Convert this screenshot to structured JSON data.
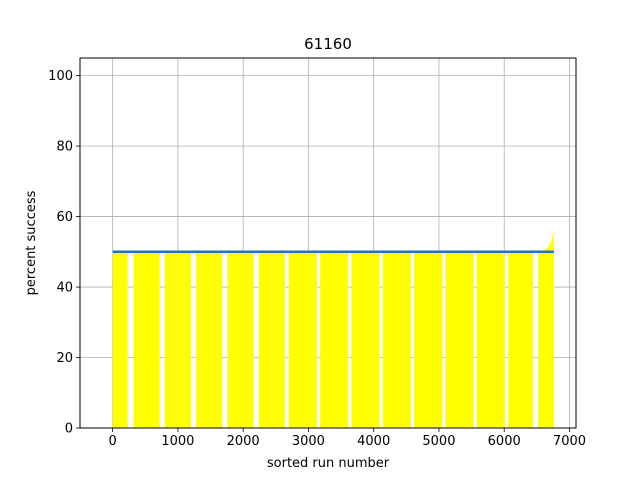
{
  "chart_data": {
    "type": "area",
    "title": "61160",
    "xlabel": "sorted run number",
    "ylabel": "percent success",
    "xlim": [
      -500,
      7100
    ],
    "ylim": [
      0,
      105
    ],
    "xticks": [
      0,
      1000,
      2000,
      3000,
      4000,
      5000,
      6000,
      7000
    ],
    "yticks": [
      0,
      20,
      40,
      60,
      80,
      100
    ],
    "grid": true,
    "fill_color": "#ffff00",
    "line_color": "#1f77b4",
    "fill_segments": [
      {
        "x": [
          0,
          230
        ],
        "y": 50
      },
      {
        "x": [
          320,
          720
        ],
        "y": 50
      },
      {
        "x": [
          800,
          1200
        ],
        "y": 50
      },
      {
        "x": [
          1280,
          1680
        ],
        "y": 50
      },
      {
        "x": [
          1760,
          2160
        ],
        "y": 50
      },
      {
        "x": [
          2240,
          2640
        ],
        "y": 50
      },
      {
        "x": [
          2700,
          3130
        ],
        "y": 50
      },
      {
        "x": [
          3180,
          3610
        ],
        "y": 50
      },
      {
        "x": [
          3660,
          4090
        ],
        "y": 50
      },
      {
        "x": [
          4140,
          4570
        ],
        "y": 50
      },
      {
        "x": [
          4620,
          5050
        ],
        "y": 50
      },
      {
        "x": [
          5100,
          5530
        ],
        "y": 50
      },
      {
        "x": [
          5580,
          6010
        ],
        "y": 50
      },
      {
        "x": [
          6060,
          6440
        ],
        "y": 50
      }
    ],
    "tail_curve": {
      "x": [
        6520,
        6600,
        6660,
        6700,
        6730,
        6750,
        6760
      ],
      "y": [
        50,
        50.5,
        51,
        52,
        53.5,
        55,
        57
      ]
    },
    "series": [
      {
        "type": "line",
        "x": [
          0,
          6760
        ],
        "y": [
          50,
          50
        ]
      }
    ]
  }
}
